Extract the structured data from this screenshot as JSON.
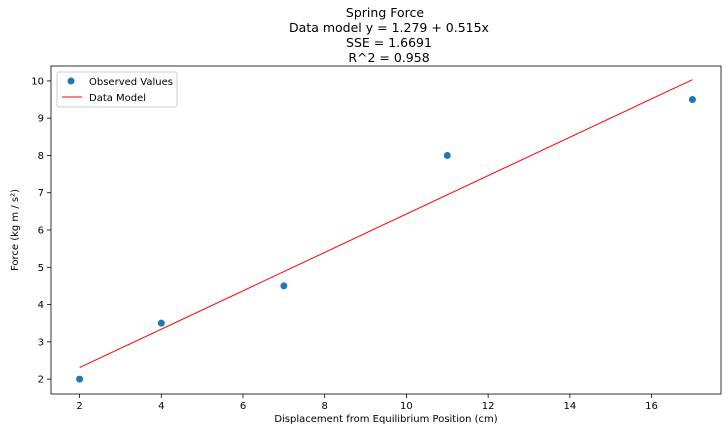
{
  "chart_data": {
    "type": "scatter",
    "title_lines": [
      "Spring Force",
      "Data model y = 1.279 + 0.515x",
      "SSE = 1.6691",
      "R^2 = 0.958"
    ],
    "xlabel": "Displacement from Equilibrium Position (cm)",
    "ylabel": "Force (kg m / s²)",
    "xlim": [
      1.3,
      17.7
    ],
    "ylim": [
      1.6,
      10.4
    ],
    "xticks": [
      2,
      4,
      6,
      8,
      10,
      12,
      14,
      16
    ],
    "yticks": [
      2,
      3,
      4,
      5,
      6,
      7,
      8,
      9,
      10
    ],
    "grid": false,
    "legend_position": "top-left",
    "series": [
      {
        "name": "Observed Values",
        "kind": "scatter",
        "color": "#1f77b4",
        "points": [
          {
            "x": 2,
            "y": 2.0
          },
          {
            "x": 4,
            "y": 3.5
          },
          {
            "x": 7,
            "y": 4.5
          },
          {
            "x": 11,
            "y": 8.0
          },
          {
            "x": 17,
            "y": 9.5
          }
        ]
      },
      {
        "name": "Data Model",
        "kind": "line",
        "color": "#ff0000",
        "intercept": 1.279,
        "slope": 0.515,
        "x_range": [
          2,
          17
        ]
      }
    ]
  }
}
